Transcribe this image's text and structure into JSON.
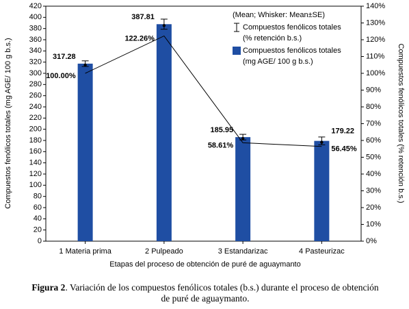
{
  "chart_data": {
    "type": "bar",
    "categories": [
      "1 Materia prima",
      "2 Pulpeado",
      "3 Estandarizac",
      "4 Pasteurizac"
    ],
    "series": [
      {
        "name": "Compuestos fenólicos totales (mg AGE/ 100 g b.s.)",
        "type": "bar",
        "color": "#1f4ea3",
        "values": [
          317.28,
          387.81,
          185.95,
          179.22
        ],
        "errors": [
          5,
          9,
          5,
          7
        ]
      },
      {
        "name": "Compuestos fenólicos totales (% retención b.s.)",
        "type": "line",
        "axis": "y2",
        "color": "#000000",
        "values": [
          100,
          122.26,
          58.61,
          56.45
        ],
        "value_labels": [
          "100.00%",
          "122.26%",
          "58.61%",
          "56.45%"
        ]
      }
    ],
    "legend_note": "(Mean; Whisker: Mean±SE)",
    "ylim": [
      0,
      420
    ],
    "yticks": [
      0,
      20,
      40,
      60,
      80,
      100,
      120,
      140,
      160,
      180,
      200,
      220,
      240,
      260,
      280,
      300,
      320,
      340,
      360,
      380,
      400,
      420
    ],
    "y2lim": [
      0,
      140
    ],
    "y2ticks": [
      {
        "value": 0,
        "label": "0%"
      },
      {
        "value": 10,
        "label": "10%"
      },
      {
        "value": 20,
        "label": "20%"
      },
      {
        "value": 30,
        "label": "30%"
      },
      {
        "value": 40,
        "label": "40%"
      },
      {
        "value": 50,
        "label": "50%"
      },
      {
        "value": 60,
        "label": "60%"
      },
      {
        "value": 70,
        "label": "70%"
      },
      {
        "value": 80,
        "label": "80%"
      },
      {
        "value": 90,
        "label": "90%"
      },
      {
        "value": 100,
        "label": "100%"
      },
      {
        "value": 110,
        "label": "110%"
      },
      {
        "value": 120,
        "label": "120%"
      },
      {
        "value": 130,
        "label": "130%"
      },
      {
        "value": 140,
        "label": "140%"
      }
    ],
    "ylabel": "Compuestos fenólicos totales (mg AGE/ 100 g b.s.)",
    "y2label": "Compuestos fenólicos totales (% retención b.s.)",
    "xlabel": "Etapas del proceso de obtención de puré de aguaymanto",
    "caption_label": "Figura 2",
    "caption": ". Variación de los compuestos fenólicos totales (b.s.) durante el proceso de obtención de puré de aguaymanto."
  }
}
